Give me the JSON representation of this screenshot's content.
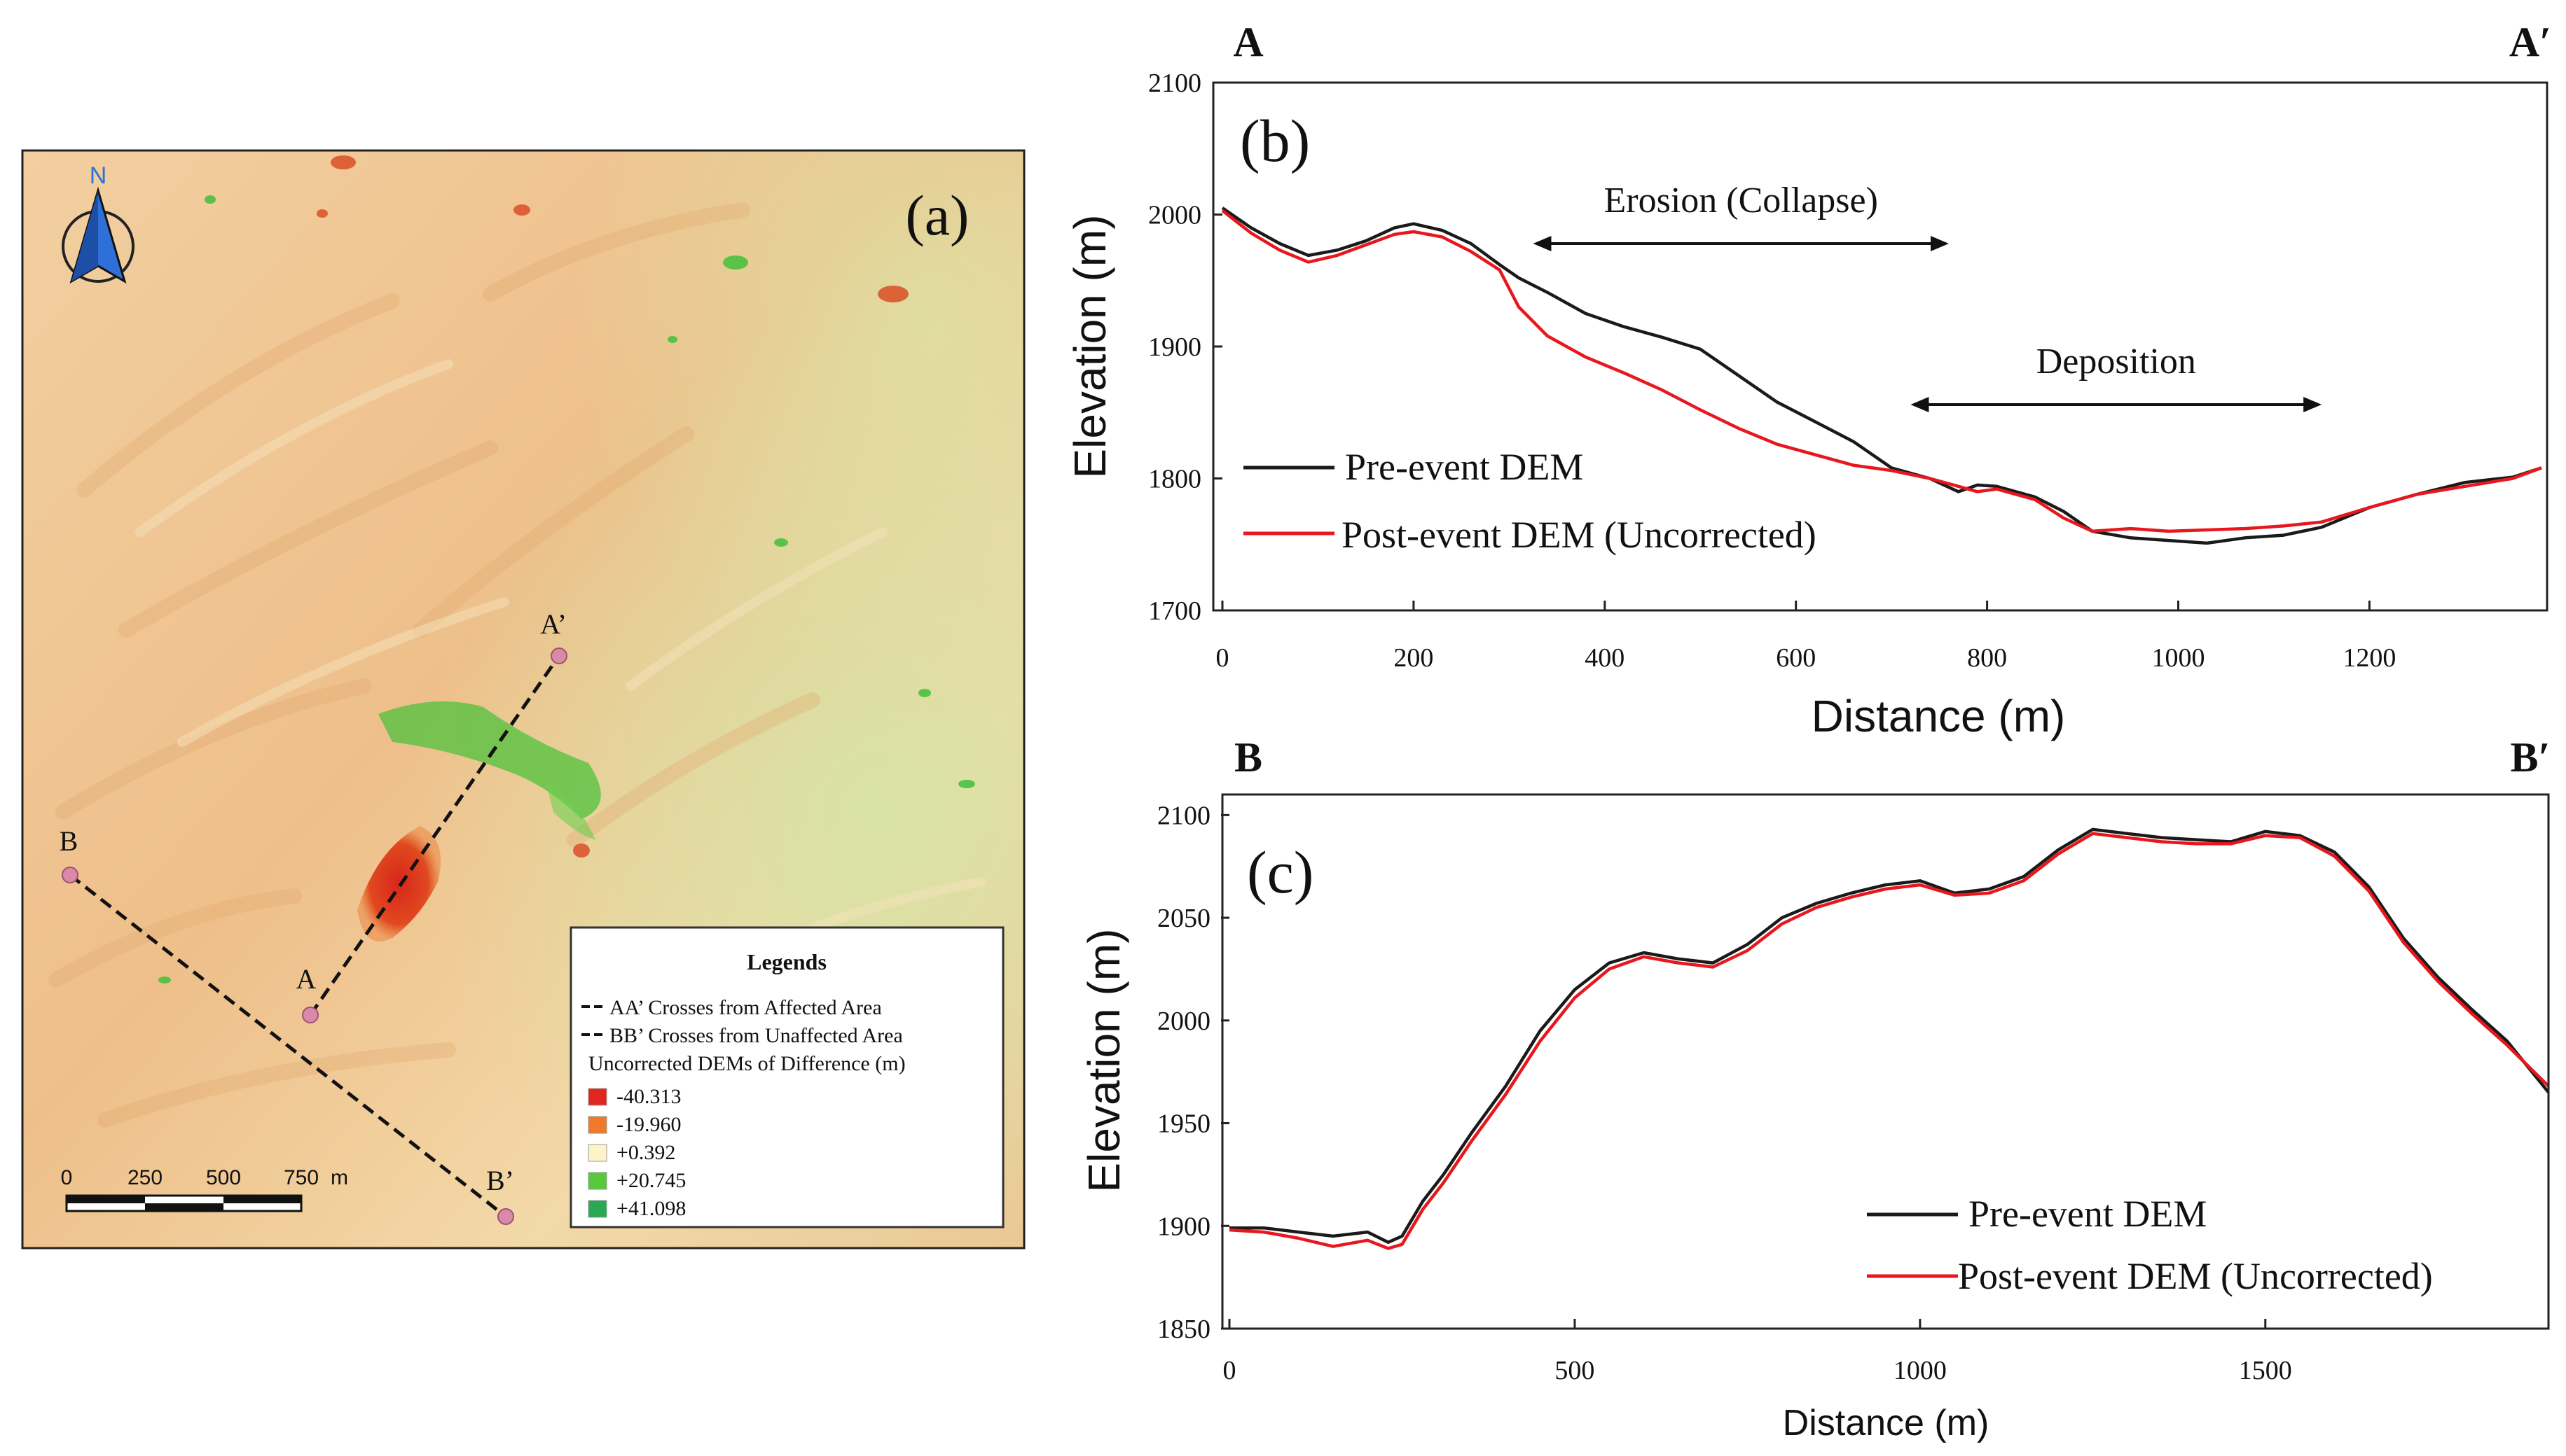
{
  "colors": {
    "pre": "#1a1a1a",
    "post": "#e8171d",
    "map_base": "#f0c896",
    "north": "#2f6fd8",
    "marker": "#d98aa8"
  },
  "map": {
    "panel_label": "(a)",
    "north_label": "N",
    "north_icon": "north-arrow-icon",
    "points": {
      "A": "A",
      "A_prime": "A’",
      "B": "B",
      "B_prime": "B’"
    },
    "scale": {
      "ticks": [
        "0",
        "250",
        "500",
        "750"
      ],
      "unit": "m"
    },
    "legend": {
      "title": "Legends",
      "lines": [
        "AA’ Crosses from Affected Area",
        "BB’ Crosses from Unaffected Area"
      ],
      "subtitle": "Uncorrected DEMs of Difference (m)",
      "classes": [
        {
          "label": "-40.313",
          "color": "#e0261e"
        },
        {
          "label": "-19.960",
          "color": "#ee7a2a"
        },
        {
          "label": "+0.392",
          "color": "#fdf3c6"
        },
        {
          "label": "+20.745",
          "color": "#58c93a"
        },
        {
          "label": "+41.098",
          "color": "#2aa852"
        }
      ]
    }
  },
  "chart_data": [
    {
      "id": "b",
      "type": "line",
      "panel_label": "(b)",
      "left_label": "A",
      "right_label": "A′",
      "xlabel": "Distance (m)",
      "ylabel": "Elevation (m)",
      "xlim": [
        0,
        1380
      ],
      "ylim": [
        1700,
        2100
      ],
      "xticks": [
        0,
        200,
        400,
        600,
        800,
        1000,
        1200
      ],
      "yticks": [
        1700,
        1800,
        1900,
        2000,
        2100
      ],
      "legend": [
        "Pre-event DEM",
        "Post-event DEM (Uncorrected)"
      ],
      "annotations": [
        {
          "text": "Erosion (Collapse)",
          "x_start": 325,
          "x_end": 760,
          "y": 1978
        },
        {
          "text": "Deposition",
          "x_start": 720,
          "x_end": 1150,
          "y": 1856
        }
      ],
      "series": [
        {
          "name": "Pre-event DEM",
          "x": [
            0,
            30,
            60,
            90,
            120,
            150,
            180,
            200,
            230,
            260,
            290,
            310,
            340,
            380,
            420,
            460,
            500,
            540,
            580,
            620,
            660,
            700,
            740,
            770,
            790,
            810,
            850,
            880,
            910,
            950,
            990,
            1030,
            1070,
            1110,
            1150,
            1200,
            1250,
            1300,
            1350,
            1380
          ],
          "y": [
            2005,
            1990,
            1978,
            1969,
            1973,
            1980,
            1990,
            1993,
            1988,
            1978,
            1962,
            1952,
            1941,
            1925,
            1915,
            1907,
            1898,
            1878,
            1858,
            1843,
            1828,
            1808,
            1800,
            1790,
            1795,
            1794,
            1786,
            1775,
            1760,
            1755,
            1753,
            1751,
            1755,
            1757,
            1763,
            1778,
            1788,
            1797,
            1801,
            1808
          ]
        },
        {
          "name": "Post-event DEM (Uncorrected)",
          "x": [
            0,
            30,
            60,
            90,
            120,
            150,
            180,
            200,
            230,
            260,
            290,
            310,
            340,
            380,
            420,
            460,
            500,
            540,
            580,
            620,
            660,
            700,
            740,
            770,
            790,
            810,
            850,
            880,
            910,
            950,
            990,
            1030,
            1070,
            1110,
            1150,
            1200,
            1250,
            1300,
            1350,
            1380
          ],
          "y": [
            2003,
            1986,
            1973,
            1964,
            1969,
            1977,
            1985,
            1987,
            1983,
            1972,
            1958,
            1930,
            1908,
            1892,
            1880,
            1867,
            1852,
            1838,
            1826,
            1818,
            1810,
            1806,
            1800,
            1794,
            1790,
            1792,
            1784,
            1770,
            1760,
            1762,
            1760,
            1761,
            1762,
            1764,
            1767,
            1778,
            1788,
            1794,
            1800,
            1808
          ]
        }
      ]
    },
    {
      "id": "c",
      "type": "line",
      "panel_label": "(c)",
      "left_label": "B",
      "right_label": "B′",
      "xlabel": "Distance (m)",
      "ylabel": "Elevation (m)",
      "xlim": [
        0,
        1910
      ],
      "ylim": [
        1850,
        2110
      ],
      "xticks": [
        0,
        500,
        1000,
        1500
      ],
      "yticks": [
        1850,
        1900,
        1950,
        2000,
        2050,
        2100
      ],
      "legend": [
        "Pre-event DEM",
        "Post-event DEM (Uncorrected)"
      ],
      "series": [
        {
          "name": "Pre-event DEM",
          "x": [
            0,
            50,
            100,
            150,
            200,
            230,
            250,
            280,
            310,
            350,
            400,
            450,
            500,
            550,
            600,
            650,
            700,
            750,
            800,
            850,
            900,
            950,
            1000,
            1050,
            1100,
            1150,
            1200,
            1250,
            1300,
            1350,
            1400,
            1450,
            1500,
            1550,
            1600,
            1650,
            1700,
            1750,
            1800,
            1850,
            1910
          ],
          "y": [
            1899,
            1899,
            1897,
            1895,
            1897,
            1892,
            1895,
            1912,
            1925,
            1945,
            1968,
            1995,
            2015,
            2028,
            2033,
            2030,
            2028,
            2037,
            2050,
            2057,
            2062,
            2066,
            2068,
            2062,
            2064,
            2070,
            2083,
            2093,
            2091,
            2089,
            2088,
            2087,
            2092,
            2090,
            2082,
            2065,
            2040,
            2021,
            2005,
            1990,
            1965
          ]
        },
        {
          "name": "Post-event DEM (Uncorrected)",
          "x": [
            0,
            50,
            100,
            150,
            200,
            230,
            250,
            280,
            310,
            350,
            400,
            450,
            500,
            550,
            600,
            650,
            700,
            750,
            800,
            850,
            900,
            950,
            1000,
            1050,
            1100,
            1150,
            1200,
            1250,
            1300,
            1350,
            1400,
            1450,
            1500,
            1550,
            1600,
            1650,
            1700,
            1750,
            1800,
            1850,
            1910
          ],
          "y": [
            1898,
            1897,
            1894,
            1890,
            1893,
            1889,
            1891,
            1908,
            1921,
            1941,
            1964,
            1990,
            2011,
            2025,
            2031,
            2028,
            2026,
            2034,
            2047,
            2055,
            2060,
            2064,
            2066,
            2061,
            2062,
            2068,
            2081,
            2091,
            2089,
            2087,
            2086,
            2086,
            2090,
            2089,
            2080,
            2063,
            2038,
            2019,
            2003,
            1988,
            1968
          ]
        }
      ]
    }
  ]
}
